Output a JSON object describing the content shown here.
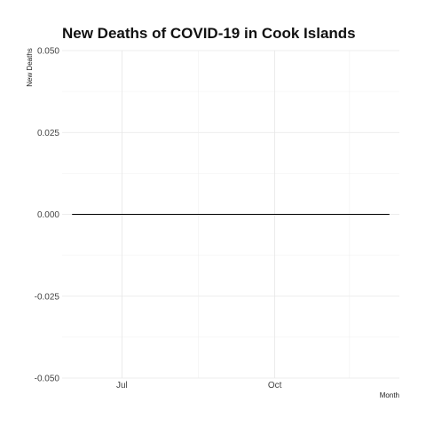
{
  "chart_data": {
    "type": "line",
    "title": "New Deaths of COVID-19 in Cook Islands",
    "xlabel": "Month",
    "ylabel": "New Deaths",
    "x_start": "2021-06-01",
    "x_end": "2021-12-09",
    "xlim": [
      "2021-05-26",
      "2021-12-15"
    ],
    "ylim": [
      -0.05,
      0.05
    ],
    "y_ticks": [
      -0.05,
      -0.025,
      0.0,
      0.025,
      0.05
    ],
    "y_tick_labels": [
      "-0.050",
      "-0.025",
      "0.000",
      "0.025",
      "0.050"
    ],
    "x_ticks": [
      "2021-07-01",
      "2021-10-01"
    ],
    "x_tick_labels": [
      "Jul",
      "Oct"
    ],
    "x_minor_ticks": [
      "2021-05-17",
      "2021-08-16",
      "2021-11-15"
    ],
    "series": [
      {
        "x": [
          "2021-06-01",
          "2021-12-09"
        ],
        "values": [
          0,
          0
        ],
        "color": "#000000"
      }
    ],
    "grid": true,
    "legend": "none"
  }
}
